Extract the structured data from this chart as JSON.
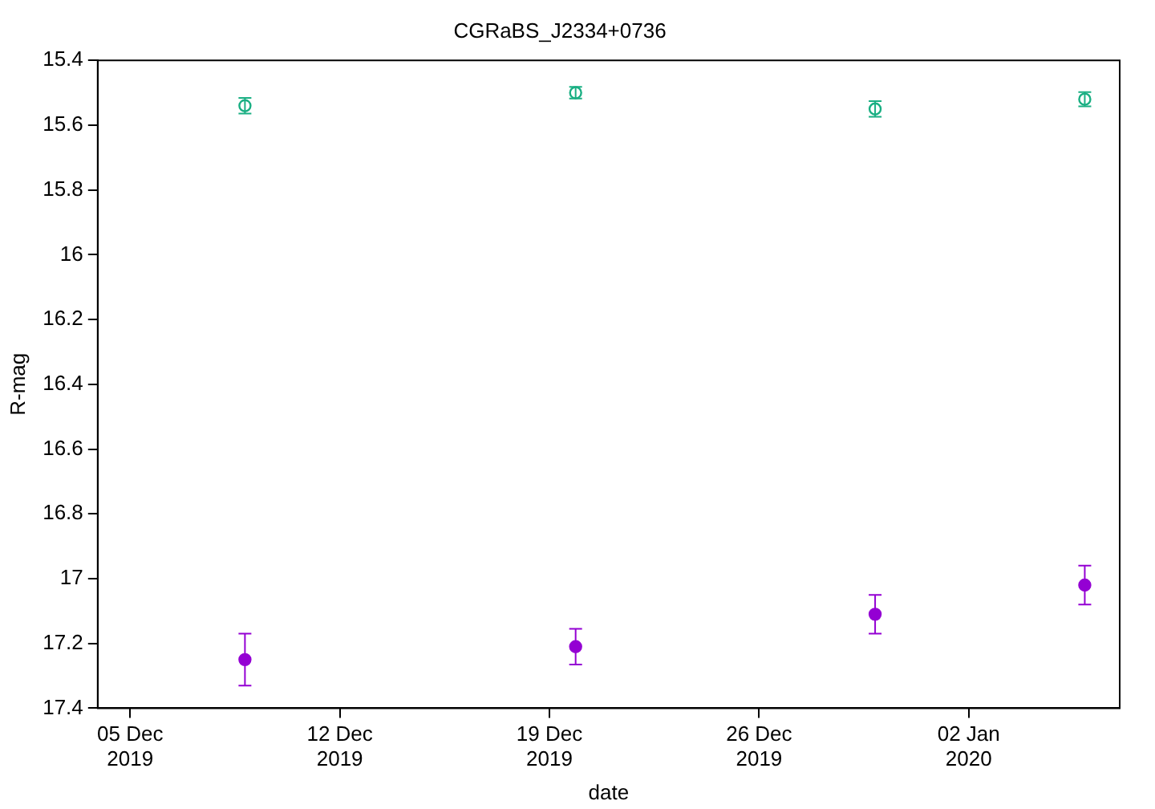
{
  "chart_data": {
    "type": "scatter",
    "title": "CGRaBS_J2334+0736",
    "xlabel": "date",
    "ylabel": "R-mag",
    "xlim": [
      "2019-12-03T22:00",
      "2020-01-07T01:00"
    ],
    "xticks": [
      {
        "value": "2019-12-05",
        "label": "05 Dec\n2019"
      },
      {
        "value": "2019-12-12",
        "label": "12 Dec\n2019"
      },
      {
        "value": "2019-12-19",
        "label": "19 Dec\n2019"
      },
      {
        "value": "2019-12-26",
        "label": "26 Dec\n2019"
      },
      {
        "value": "2020-01-02",
        "label": "02 Jan\n2020"
      }
    ],
    "ylim": [
      17.4,
      15.4
    ],
    "yticks": [
      15.4,
      15.6,
      15.8,
      16,
      16.2,
      16.4,
      16.6,
      16.8,
      17,
      17.2,
      17.4
    ],
    "grid": false,
    "legend": false,
    "marker": "circle",
    "series": [
      {
        "color": "#1aaf83",
        "x": [
          "2019-12-08T20:00",
          "2019-12-19T21:00",
          "2019-12-29T21:00",
          "2020-01-05T21:00"
        ],
        "values": [
          15.54,
          15.5,
          15.55,
          15.52
        ],
        "errors": [
          0.024,
          0.018,
          0.024,
          0.022
        ]
      },
      {
        "color": "#9400d3",
        "x": [
          "2019-12-08T20:00",
          "2019-12-19T21:00",
          "2019-12-29T21:00",
          "2020-01-05T21:00"
        ],
        "values": [
          17.25,
          17.21,
          17.11,
          17.02
        ],
        "errors": [
          0.08,
          0.055,
          0.06,
          0.06
        ]
      }
    ]
  }
}
